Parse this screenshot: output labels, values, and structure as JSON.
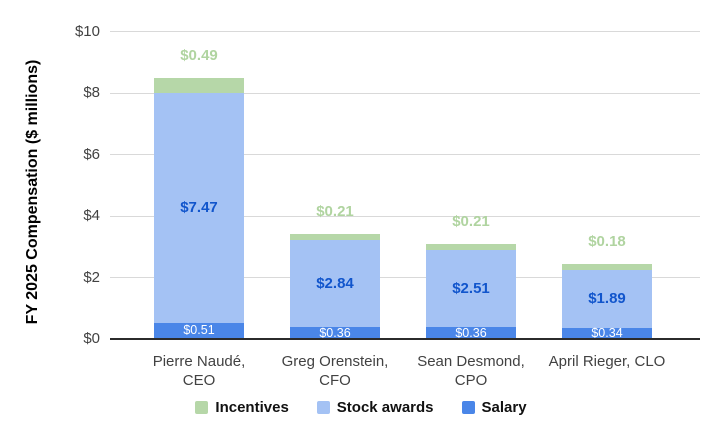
{
  "chart_data": {
    "type": "bar",
    "stacked": true,
    "y_axis_title": "FY 2025 Compensation ($ millions)",
    "ylim": [
      0,
      10
    ],
    "grid": true,
    "legend_position": "bottom",
    "y_ticks": [
      {
        "label": "$0",
        "value": 0
      },
      {
        "label": "$2",
        "value": 2
      },
      {
        "label": "$4",
        "value": 4
      },
      {
        "label": "$6",
        "value": 6
      },
      {
        "label": "$8",
        "value": 8
      },
      {
        "label": "$10",
        "value": 10
      }
    ],
    "categories": [
      {
        "lines": [
          "Pierre Naudé,",
          "CEO"
        ]
      },
      {
        "lines": [
          "Greg Orenstein,",
          "CFO"
        ]
      },
      {
        "lines": [
          "Sean Desmond,",
          "CPO"
        ]
      },
      {
        "lines": [
          "April Rieger, CLO"
        ]
      }
    ],
    "series": [
      {
        "name": "Salary",
        "color": "#4a86e8",
        "values": [
          0.51,
          0.36,
          0.36,
          0.34
        ],
        "labels": [
          "$0.51",
          "$0.36",
          "$0.36",
          "$0.34"
        ],
        "label_color": "#ffffff",
        "label_placement": "inside"
      },
      {
        "name": "Stock awards",
        "color": "#a4c2f4",
        "values": [
          7.47,
          2.84,
          2.51,
          1.89
        ],
        "labels": [
          "$7.47",
          "$2.84",
          "$2.51",
          "$1.89"
        ],
        "label_color": "#1155cc",
        "label_placement": "inside"
      },
      {
        "name": "Incentives",
        "color": "#b6d7a8",
        "values": [
          0.49,
          0.21,
          0.21,
          0.18
        ],
        "labels": [
          "$0.49",
          "$0.21",
          "$0.21",
          "$0.18"
        ],
        "label_color": "#b0d4a0",
        "label_placement": "above"
      }
    ],
    "legend": [
      {
        "label": "Incentives",
        "color": "#b6d7a8"
      },
      {
        "label": "Stock awards",
        "color": "#a4c2f4"
      },
      {
        "label": "Salary",
        "color": "#4a86e8"
      }
    ]
  }
}
